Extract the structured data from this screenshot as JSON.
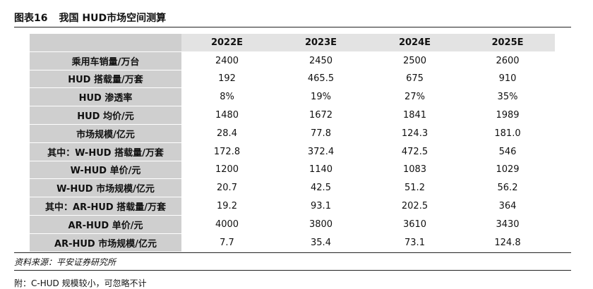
{
  "figure": {
    "number": "图表16",
    "title": "我国 HUD市场空间测算"
  },
  "table": {
    "columns": [
      "2022E",
      "2023E",
      "2024E",
      "2025E"
    ],
    "rows": [
      {
        "label": "乘用车销量/万台",
        "values": [
          "2400",
          "2450",
          "2500",
          "2600"
        ]
      },
      {
        "label": "HUD 搭载量/万套",
        "values": [
          "192",
          "465.5",
          "675",
          "910"
        ]
      },
      {
        "label": "HUD 渗透率",
        "values": [
          "8%",
          "19%",
          "27%",
          "35%"
        ]
      },
      {
        "label": "HUD 均价/元",
        "values": [
          "1480",
          "1672",
          "1841",
          "1989"
        ]
      },
      {
        "label": "市场规模/亿元",
        "values": [
          "28.4",
          "77.8",
          "124.3",
          "181.0"
        ]
      },
      {
        "label": "其中：W-HUD 搭载量/万套",
        "values": [
          "172.8",
          "372.4",
          "472.5",
          "546"
        ]
      },
      {
        "label": "W-HUD 单价/元",
        "values": [
          "1200",
          "1140",
          "1083",
          "1029"
        ]
      },
      {
        "label": "W-HUD 市场规模/亿元",
        "values": [
          "20.7",
          "42.5",
          "51.2",
          "56.2"
        ]
      },
      {
        "label": "其中：AR-HUD 搭载量/万套",
        "values": [
          "19.2",
          "93.1",
          "202.5",
          "364"
        ]
      },
      {
        "label": "AR-HUD 单价/元",
        "values": [
          "4000",
          "3800",
          "3610",
          "3430"
        ]
      },
      {
        "label": "AR-HUD 市场规模/亿元",
        "values": [
          "7.7",
          "35.4",
          "73.1",
          "124.8"
        ]
      }
    ]
  },
  "source": "资料来源：平安证券研究所",
  "note": "附：C-HUD 规模较小，可忽略不计"
}
